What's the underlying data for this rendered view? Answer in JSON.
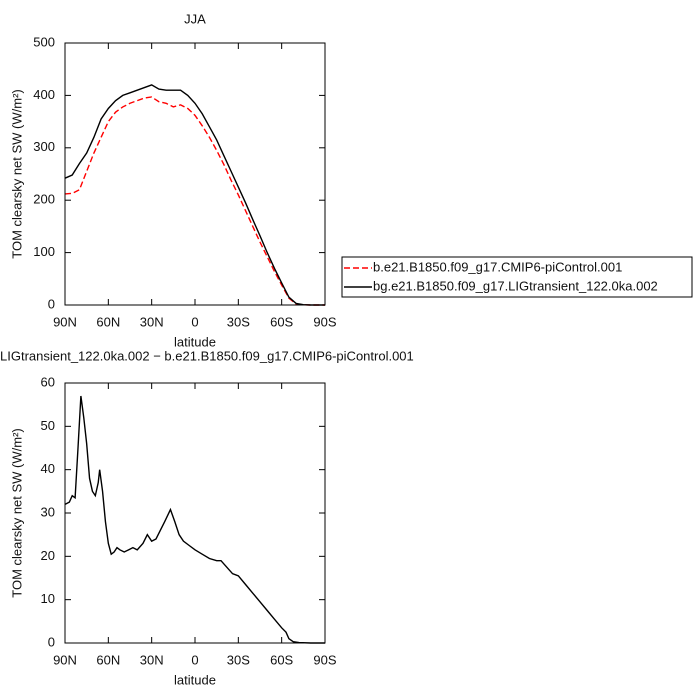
{
  "chart_data": [
    {
      "type": "line",
      "title": "JJA",
      "x_label": "latitude",
      "y_label": "TOM clearsky net SW (W/m²)",
      "x": [
        90,
        85,
        80,
        75,
        70,
        65,
        60,
        55,
        50,
        45,
        40,
        35,
        30,
        25,
        20,
        15,
        10,
        5,
        0,
        -5,
        -10,
        -15,
        -20,
        -25,
        -30,
        -35,
        -40,
        -45,
        -50,
        -55,
        -60,
        -65,
        -70,
        -75,
        -80,
        -85,
        -90
      ],
      "series": [
        {
          "name": "b.e21.B1850.f09_g17.CMIP6-piControl.001",
          "color": "#ff0000",
          "dashed": true,
          "values": [
            212,
            213,
            220,
            255,
            290,
            320,
            350,
            368,
            378,
            385,
            390,
            395,
            397,
            388,
            385,
            378,
            382,
            375,
            362,
            342,
            320,
            295,
            268,
            238,
            210,
            180,
            150,
            120,
            92,
            64,
            38,
            13,
            2,
            0.4,
            0,
            0,
            0
          ]
        },
        {
          "name": "bg.e21.B1850.f09_g17.LIGtransient_122.0ka.002",
          "color": "#000000",
          "dashed": false,
          "values": [
            242,
            248,
            270,
            290,
            320,
            355,
            375,
            390,
            400,
            405,
            410,
            415,
            420,
            412,
            410,
            410,
            410,
            400,
            385,
            365,
            340,
            315,
            285,
            255,
            225,
            195,
            163,
            132,
            100,
            70,
            42,
            15,
            3,
            0.5,
            0,
            0,
            0
          ]
        }
      ],
      "xlim": [
        90,
        -90
      ],
      "xticks": [
        {
          "value": 90,
          "label": "90N"
        },
        {
          "value": 60,
          "label": "60N"
        },
        {
          "value": 30,
          "label": "30N"
        },
        0,
        {
          "value": -30,
          "label": "30S"
        },
        {
          "value": -60,
          "label": "60S"
        },
        {
          "value": -90,
          "label": "90S"
        }
      ],
      "ylim": [
        0,
        500
      ],
      "yticks": [
        0,
        100,
        200,
        300,
        400,
        500
      ],
      "legend": "outside-right"
    },
    {
      "type": "line",
      "title": "LIGtransient_122.0ka.002 − b.e21.B1850.f09_g17.CMIP6-piControl.001",
      "x_label": "latitude",
      "y_label": "TOM clearsky net SW (W/m²)",
      "x": [
        90,
        87,
        85,
        83,
        81,
        79,
        77,
        75,
        73,
        71,
        69,
        67,
        66,
        64,
        62,
        60,
        58,
        56,
        54,
        52,
        49,
        46,
        43,
        40,
        36,
        33,
        30,
        27,
        24,
        21,
        17,
        14,
        11,
        8,
        4,
        0,
        -5,
        -10,
        -15,
        -18,
        -22,
        -26,
        -30,
        -35,
        -40,
        -45,
        -50,
        -55,
        -60,
        -63,
        -65,
        -68,
        -72,
        -80,
        -90
      ],
      "values": [
        32,
        32.5,
        34,
        33.5,
        45,
        57,
        52,
        46,
        38,
        35,
        34,
        37,
        40,
        35,
        28,
        23,
        20.5,
        21,
        22,
        21.5,
        21,
        21.5,
        22,
        21.5,
        23,
        25,
        23.5,
        24,
        26,
        28,
        30.8,
        28,
        25,
        23.5,
        22.5,
        21.5,
        20.5,
        19.5,
        19,
        19,
        17.5,
        16,
        15.5,
        13.5,
        11.5,
        9.5,
        7.5,
        5.5,
        3.5,
        2.5,
        1,
        0.3,
        0.1,
        0,
        0
      ],
      "color": "#000000",
      "xlim": [
        90,
        -90
      ],
      "xticks": [
        {
          "value": 90,
          "label": "90N"
        },
        {
          "value": 60,
          "label": "60N"
        },
        {
          "value": 30,
          "label": "30N"
        },
        0,
        {
          "value": -30,
          "label": "30S"
        },
        {
          "value": -60,
          "label": "60S"
        },
        {
          "value": -90,
          "label": "90S"
        }
      ],
      "ylim": [
        0,
        60
      ],
      "yticks": [
        0,
        10,
        20,
        30,
        40,
        50,
        60
      ]
    }
  ]
}
